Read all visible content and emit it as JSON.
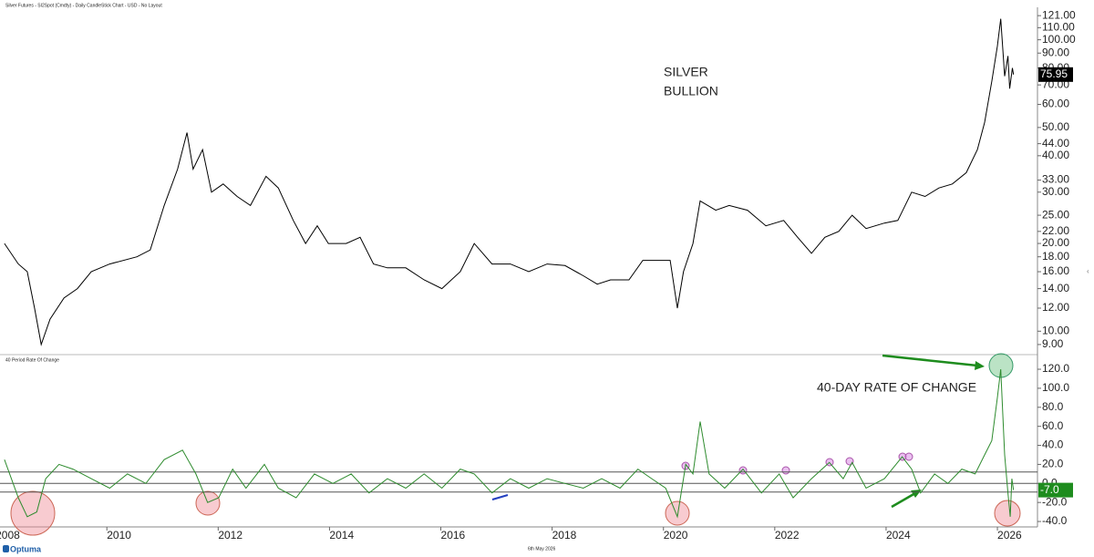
{
  "title": "Silver Futures - SI2Spot (Cmdty) - Daily CandleStick Chart - USD - No Layout",
  "footer": {
    "date": "6th May 2026",
    "brand": "Optuma"
  },
  "chart_data": [
    {
      "type": "line",
      "log_scale": true,
      "color": "#000000",
      "annotations": [
        "SILVER",
        "BULLION"
      ],
      "xlim": [
        2008.08,
        2026.72
      ],
      "ylim": [
        8.37,
        127.4
      ],
      "yticks": [
        {
          "value": 9,
          "label": "9.00"
        },
        {
          "value": 10,
          "label": "10.00"
        },
        {
          "value": 12,
          "label": "12.00"
        },
        {
          "value": 14,
          "label": "14.00"
        },
        {
          "value": 16,
          "label": "16.00"
        },
        {
          "value": 18,
          "label": "18.00"
        },
        {
          "value": 20,
          "label": "20.00"
        },
        {
          "value": 22,
          "label": "22.00"
        },
        {
          "value": 25,
          "label": "25.00"
        },
        {
          "value": 30,
          "label": "30.00"
        },
        {
          "value": 33,
          "label": "33.00"
        },
        {
          "value": 40,
          "label": "40.00"
        },
        {
          "value": 44,
          "label": "44.00"
        },
        {
          "value": 50,
          "label": "50.00"
        },
        {
          "value": 60,
          "label": "60.00"
        },
        {
          "value": 70,
          "label": "70.00"
        },
        {
          "value": 80,
          "label": "80.00"
        },
        {
          "value": 90,
          "label": "90.00"
        },
        {
          "value": 100,
          "label": "100.00"
        },
        {
          "value": 110,
          "label": "110.00"
        },
        {
          "value": 121,
          "label": "121.00"
        }
      ],
      "last_value": 75.95,
      "last_value_color": "#000000",
      "x": [
        2008.16,
        2008.41,
        2008.57,
        2008.7,
        2008.82,
        2008.98,
        2009.23,
        2009.47,
        2009.72,
        2010.05,
        2010.54,
        2010.78,
        2011.03,
        2011.27,
        2011.44,
        2011.55,
        2011.72,
        2011.88,
        2012.09,
        2012.34,
        2012.58,
        2012.86,
        2013.08,
        2013.35,
        2013.57,
        2013.78,
        2013.98,
        2014.3,
        2014.55,
        2014.79,
        2015.04,
        2015.37,
        2015.7,
        2016.02,
        2016.35,
        2016.6,
        2016.92,
        2017.25,
        2017.58,
        2017.91,
        2018.23,
        2018.56,
        2018.81,
        2019.05,
        2019.38,
        2019.63,
        2019.95,
        2020.12,
        2020.25,
        2020.36,
        2020.53,
        2020.66,
        2020.94,
        2021.18,
        2021.51,
        2021.84,
        2022.16,
        2022.41,
        2022.66,
        2022.9,
        2023.15,
        2023.39,
        2023.64,
        2023.97,
        2024.21,
        2024.46,
        2024.7,
        2024.95,
        2025.19,
        2025.44,
        2025.64,
        2025.77,
        2025.9,
        2026.0,
        2026.06,
        2026.13,
        2026.19,
        2026.22,
        2026.27,
        2026.29
      ],
      "values": [
        20,
        17,
        16,
        12,
        9,
        11,
        13,
        14,
        16,
        17,
        18,
        19,
        27,
        36,
        48,
        36,
        42,
        30,
        32,
        29,
        27,
        34,
        31,
        24,
        20,
        23,
        20,
        20,
        21,
        17,
        16.5,
        16.5,
        15,
        14,
        16,
        20,
        17,
        17,
        16,
        17,
        16.8,
        15.5,
        14.5,
        15,
        15,
        17.5,
        17.5,
        17.5,
        12,
        16,
        20,
        28,
        26,
        27,
        26,
        23,
        24,
        21,
        18.5,
        21,
        22,
        25,
        22.5,
        23.5,
        24,
        30,
        29,
        31,
        32,
        35,
        42,
        52,
        72,
        95,
        118,
        75,
        88,
        68,
        80,
        75.95
      ]
    },
    {
      "type": "line",
      "color": "#2e8b2e",
      "subtitle": "40 Period Rate Of Change",
      "annotation": "40-DAY RATE OF CHANGE",
      "xlim": [
        2008.08,
        2026.72
      ],
      "ylim": [
        -45.7,
        134.4
      ],
      "xticks": [
        2008,
        2010,
        2012,
        2014,
        2016,
        2018,
        2020,
        2022,
        2024,
        2026
      ],
      "yticks": [
        {
          "value": -40,
          "label": "-40.0"
        },
        {
          "value": -20,
          "label": "-20.0"
        },
        {
          "value": 0,
          "label": "0.0"
        },
        {
          "value": 20,
          "label": "20.0"
        },
        {
          "value": 40,
          "label": "40.0"
        },
        {
          "value": 60,
          "label": "60.0"
        },
        {
          "value": 80,
          "label": "80.0"
        },
        {
          "value": 100,
          "label": "100.0"
        },
        {
          "value": 120,
          "label": "120.0"
        }
      ],
      "hlines": [
        12,
        0,
        -9
      ],
      "last_value": {
        "value": -7,
        "label": "-7.0"
      },
      "last_value_color": "#1e8c1e",
      "x": [
        2008.16,
        2008.41,
        2008.57,
        2008.74,
        2008.9,
        2009.14,
        2009.39,
        2009.72,
        2010.05,
        2010.37,
        2010.7,
        2011.03,
        2011.36,
        2011.6,
        2011.81,
        2012.01,
        2012.26,
        2012.5,
        2012.83,
        2013.08,
        2013.4,
        2013.73,
        2014.06,
        2014.39,
        2014.71,
        2015.04,
        2015.37,
        2015.7,
        2016.02,
        2016.35,
        2016.6,
        2016.92,
        2017.25,
        2017.58,
        2017.91,
        2018.23,
        2018.56,
        2018.89,
        2019.22,
        2019.54,
        2019.79,
        2020.04,
        2020.25,
        2020.4,
        2020.53,
        2020.66,
        2020.82,
        2021.1,
        2021.43,
        2021.76,
        2022.08,
        2022.33,
        2022.66,
        2022.98,
        2023.23,
        2023.39,
        2023.64,
        2023.97,
        2024.29,
        2024.46,
        2024.62,
        2024.87,
        2025.11,
        2025.36,
        2025.6,
        2025.77,
        2025.9,
        2026.0,
        2026.06,
        2026.13,
        2026.19,
        2026.23,
        2026.26,
        2026.29
      ],
      "values": [
        25,
        -15,
        -35,
        -30,
        5,
        20,
        15,
        5,
        -5,
        10,
        0,
        25,
        35,
        10,
        -20,
        -15,
        15,
        -5,
        20,
        -5,
        -15,
        10,
        0,
        10,
        -10,
        5,
        -5,
        10,
        -5,
        15,
        10,
        -10,
        5,
        -5,
        5,
        0,
        -5,
        5,
        -5,
        15,
        5,
        -5,
        -35,
        20,
        10,
        65,
        10,
        -5,
        15,
        -10,
        10,
        -15,
        5,
        22,
        5,
        22,
        -5,
        5,
        28,
        15,
        -10,
        10,
        0,
        15,
        10,
        30,
        45,
        90,
        120,
        30,
        -10,
        -35,
        5,
        -7
      ]
    }
  ]
}
